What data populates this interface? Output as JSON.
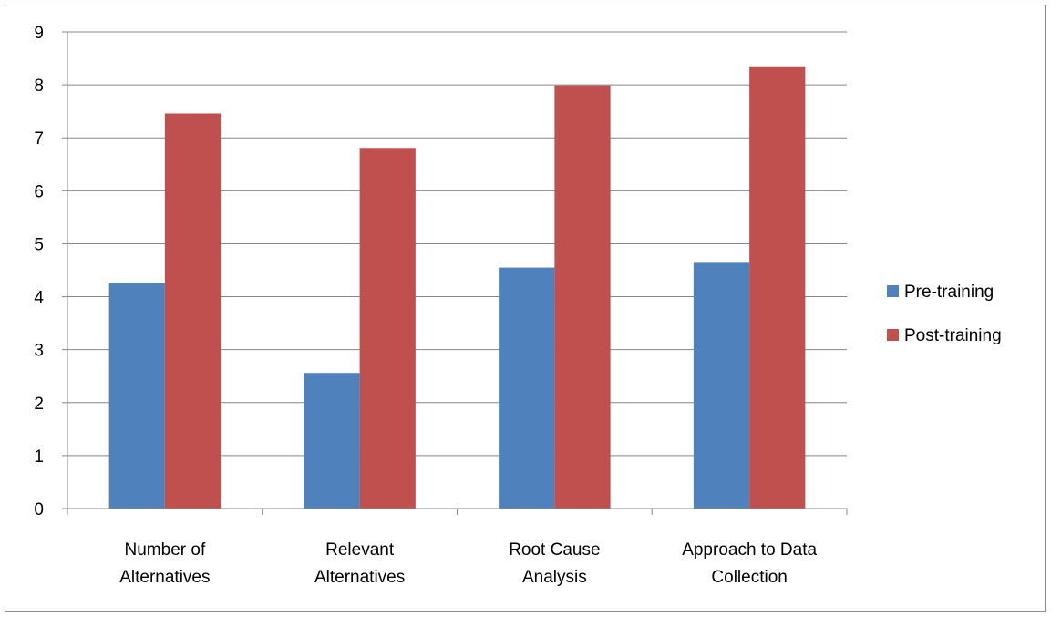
{
  "chart_data": {
    "type": "bar",
    "title": "",
    "xlabel": "",
    "ylabel": "",
    "categories": [
      [
        "Number of",
        "Alternatives"
      ],
      [
        "Relevant",
        "Alternatives"
      ],
      [
        "Root Cause",
        "Analysis"
      ],
      [
        "Approach to Data",
        "Collection"
      ]
    ],
    "series": [
      {
        "name": "Pre-training",
        "color": "#4f81bd",
        "values": [
          4.25,
          2.56,
          4.55,
          4.64
        ]
      },
      {
        "name": "Post-training",
        "color": "#c0504d",
        "values": [
          7.46,
          6.81,
          7.99,
          8.35
        ]
      }
    ],
    "ylim": [
      0,
      9
    ],
    "yticks": [
      0,
      1,
      2,
      3,
      4,
      5,
      6,
      7,
      8,
      9
    ],
    "grid": true,
    "legend_position": "right"
  }
}
